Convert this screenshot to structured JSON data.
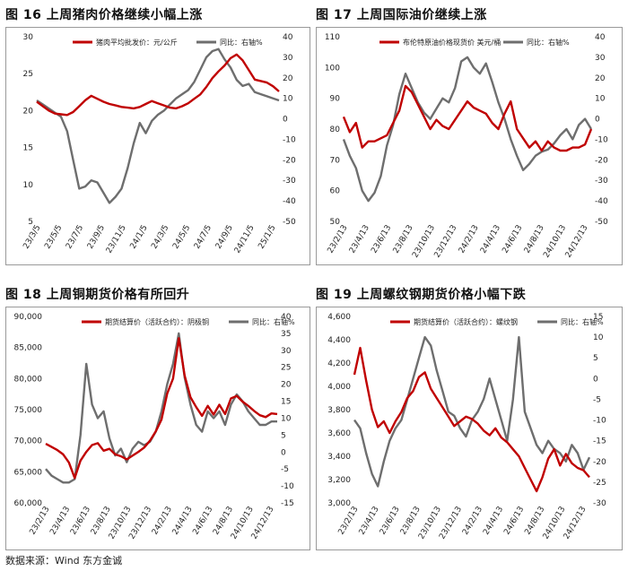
{
  "source": "数据来源：Wind 东方金诚",
  "colors": {
    "red": "#c00000",
    "gray": "#6e6e6e"
  },
  "chart_data": [
    {
      "type": "line",
      "title": "图 16  上周猪肉价格继续小幅上涨",
      "legend": "top",
      "series": [
        {
          "name": "猪肉平均批发价：元/公斤",
          "axis": "left",
          "color": "#c00000",
          "values": [
            21.2,
            20.6,
            20.0,
            19.6,
            19.5,
            19.4,
            19.8,
            20.6,
            21.4,
            22.0,
            21.6,
            21.2,
            20.9,
            20.7,
            20.5,
            20.4,
            20.3,
            20.5,
            20.9,
            21.3,
            21.0,
            20.7,
            20.4,
            20.3,
            20.6,
            21.0,
            21.6,
            22.2,
            23.2,
            24.4,
            25.3,
            26.1,
            27.1,
            27.6,
            26.8,
            25.5,
            24.2,
            24.0,
            23.8,
            23.3,
            22.6
          ]
        },
        {
          "name": "同比：右轴%",
          "axis": "right",
          "color": "#6e6e6e",
          "values": [
            9,
            7,
            5,
            3,
            1,
            -6,
            -20,
            -34,
            -33,
            -30,
            -31,
            -36,
            -41,
            -38,
            -34,
            -24,
            -12,
            -2,
            -7,
            -1,
            2,
            4,
            7,
            10,
            12,
            14,
            18,
            24,
            30,
            33,
            34,
            29,
            25,
            19,
            16,
            17,
            13,
            12,
            11,
            10,
            9
          ]
        }
      ],
      "xticks": [
        "23/3/5",
        "23/5/5",
        "23/7/5",
        "23/9/5",
        "23/11/5",
        "24/1/5",
        "24/3/5",
        "24/5/5",
        "24/7/5",
        "24/9/5",
        "24/11/5",
        "25/1/5"
      ],
      "ylim_left": [
        5,
        30
      ],
      "yticks_left": [
        5,
        10,
        15,
        20,
        25,
        30
      ],
      "ylim_right": [
        -50,
        40
      ],
      "yticks_right": [
        -50,
        -40,
        -30,
        -20,
        -10,
        0,
        10,
        20,
        30,
        40
      ]
    },
    {
      "type": "line",
      "title": "图 17  上周国际油价继续上涨",
      "legend": "top",
      "series": [
        {
          "name": "布伦特原油价格现货价 美元/桶",
          "axis": "left",
          "color": "#c00000",
          "values": [
            84,
            79,
            82,
            74,
            76,
            76,
            77,
            78,
            82,
            86,
            94,
            92,
            88,
            84,
            80,
            83,
            81,
            80,
            83,
            86,
            89,
            87,
            86,
            85,
            82,
            80,
            85,
            89,
            80,
            77,
            74,
            76,
            73,
            76,
            74,
            73,
            73,
            74,
            74,
            75,
            80
          ]
        },
        {
          "name": "同比：右轴%",
          "axis": "right",
          "color": "#6e6e6e",
          "values": [
            -10,
            -18,
            -24,
            -35,
            -40,
            -36,
            -28,
            -13,
            -3,
            12,
            22,
            15,
            8,
            3,
            0,
            5,
            10,
            8,
            15,
            28,
            30,
            25,
            22,
            27,
            18,
            8,
            0,
            -10,
            -18,
            -25,
            -22,
            -18,
            -16,
            -15,
            -12,
            -8,
            -5,
            -10,
            -3,
            0,
            -5
          ]
        }
      ],
      "xticks": [
        "23/2/13",
        "23/4/13",
        "23/6/13",
        "23/8/13",
        "23/10/13",
        "23/12/13",
        "24/2/13",
        "24/4/13",
        "24/6/13",
        "24/8/13",
        "24/10/13",
        "24/12/13"
      ],
      "ylim_left": [
        50,
        110
      ],
      "yticks_left": [
        50,
        60,
        70,
        80,
        90,
        100,
        110
      ],
      "ylim_right": [
        -50,
        40
      ],
      "yticks_right": [
        -50,
        -40,
        -30,
        -20,
        -10,
        0,
        10,
        20,
        30,
        40
      ]
    },
    {
      "type": "line",
      "title": "图 18  上周铜期货价格有所回升",
      "legend": "top",
      "series": [
        {
          "name": "期货结算价（活跃合约）：阴极铜",
          "axis": "left",
          "color": "#c00000",
          "values": [
            69500,
            69000,
            68500,
            67800,
            66500,
            64000,
            66800,
            68200,
            69300,
            69600,
            68400,
            68700,
            67800,
            67500,
            67000,
            67600,
            68200,
            68900,
            70000,
            71500,
            73400,
            77600,
            80000,
            86500,
            80500,
            77000,
            75400,
            74000,
            75600,
            74200,
            75800,
            74300,
            76800,
            77200,
            76300,
            75600,
            74800,
            74100,
            73800,
            74400,
            74300
          ]
        },
        {
          "name": "同比：右轴%",
          "axis": "right",
          "color": "#6e6e6e",
          "values": [
            -5,
            -7,
            -8,
            -9,
            -9,
            -8,
            5,
            26,
            14,
            10,
            12,
            4,
            -1,
            1,
            -3,
            1,
            3,
            2,
            3,
            6,
            12,
            20,
            26,
            35,
            22,
            14,
            8,
            6,
            12,
            10,
            12,
            8,
            14,
            17,
            15,
            12,
            10,
            8,
            8,
            9,
            9
          ]
        }
      ],
      "xticks": [
        "23/2/13",
        "23/4/13",
        "23/6/13",
        "23/8/13",
        "23/10/13",
        "23/12/13",
        "24/2/13",
        "24/4/13",
        "24/6/13",
        "24/8/13",
        "24/10/13",
        "24/12/13"
      ],
      "ylim_left": [
        60000,
        90000
      ],
      "yticks_left": [
        60000,
        65000,
        70000,
        75000,
        80000,
        85000,
        90000
      ],
      "ytick_labels_left": [
        "60,000",
        "65,000",
        "70,000",
        "75,000",
        "80,000",
        "85,000",
        "90,000"
      ],
      "ylim_right": [
        -15,
        40
      ],
      "yticks_right": [
        -15,
        -10,
        -5,
        0,
        5,
        10,
        15,
        20,
        25,
        30,
        35,
        40
      ]
    },
    {
      "type": "line",
      "title": "图 19  上周螺纹钢期货价格小幅下跌",
      "legend": "top",
      "series": [
        {
          "name": "期货结算价（活跃合约）：螺纹钢",
          "axis": "left",
          "color": "#c00000",
          "values": [
            4100,
            4330,
            4050,
            3800,
            3650,
            3700,
            3600,
            3700,
            3780,
            3900,
            3960,
            4080,
            4120,
            3980,
            3900,
            3820,
            3740,
            3660,
            3700,
            3740,
            3720,
            3680,
            3620,
            3580,
            3640,
            3560,
            3520,
            3460,
            3400,
            3300,
            3200,
            3100,
            3220,
            3380,
            3460,
            3320,
            3420,
            3340,
            3300,
            3280,
            3220
          ]
        },
        {
          "name": "同比：右轴%",
          "axis": "right",
          "color": "#6e6e6e",
          "values": [
            -10,
            -12,
            -18,
            -23,
            -26,
            -20,
            -15,
            -12,
            -10,
            -5,
            0,
            5,
            10,
            8,
            2,
            -3,
            -8,
            -9,
            -12,
            -14,
            -10,
            -8,
            -5,
            0,
            -5,
            -10,
            -15,
            -5,
            10,
            -8,
            -12,
            -16,
            -18,
            -15,
            -17,
            -18,
            -20,
            -16,
            -18,
            -22,
            -19
          ]
        }
      ],
      "xticks": [
        "23/2/13",
        "23/4/13",
        "23/6/13",
        "23/8/13",
        "23/10/13",
        "23/12/13",
        "24/2/13",
        "24/4/13",
        "24/6/13",
        "24/8/13",
        "24/10/13",
        "24/12/13"
      ],
      "ylim_left": [
        3000,
        4600
      ],
      "yticks_left": [
        3000,
        3200,
        3400,
        3600,
        3800,
        4000,
        4200,
        4400,
        4600
      ],
      "ytick_labels_left": [
        "3,000",
        "3,200",
        "3,400",
        "3,600",
        "3,800",
        "4,000",
        "4,200",
        "4,400",
        "4,600"
      ],
      "ylim_right": [
        -30,
        15
      ],
      "yticks_right": [
        -30,
        -25,
        -20,
        -15,
        -10,
        -5,
        0,
        5,
        10,
        15
      ]
    }
  ]
}
